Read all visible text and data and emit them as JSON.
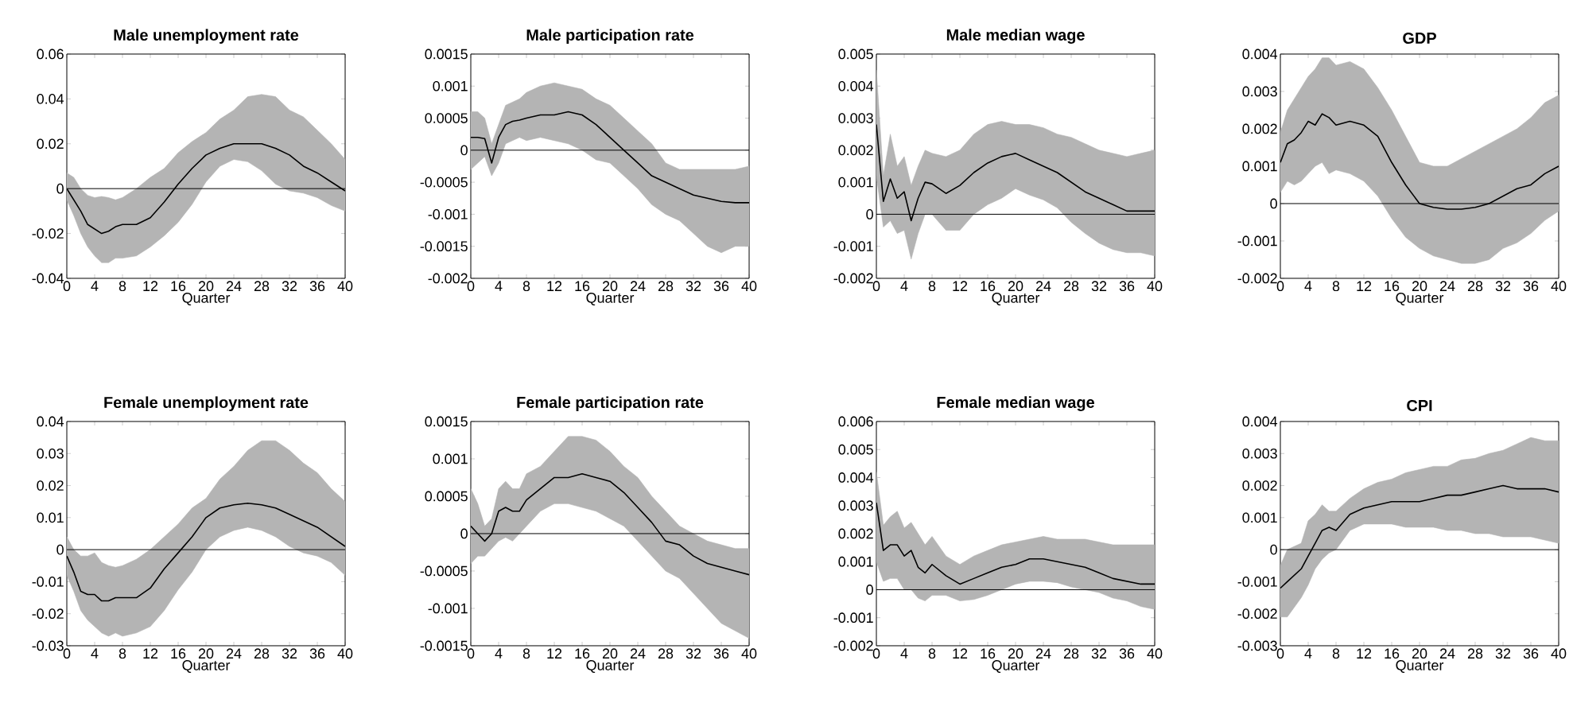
{
  "chart_data": [
    {
      "type": "line",
      "title": "Male unemployment rate",
      "xlabel": "Quarter",
      "x": [
        0,
        1,
        2,
        3,
        4,
        5,
        6,
        7,
        8,
        10,
        12,
        14,
        16,
        18,
        20,
        22,
        24,
        26,
        28,
        30,
        32,
        34,
        36,
        38,
        40
      ],
      "xlim": [
        0,
        40
      ],
      "xticks": [
        0,
        4,
        8,
        12,
        16,
        20,
        24,
        28,
        32,
        36,
        40
      ],
      "ylim": [
        -0.04,
        0.06
      ],
      "yticks": [
        -0.04,
        -0.02,
        0,
        0.02,
        0.04,
        0.06
      ],
      "ref_lines": [
        {
          "axis": "y",
          "value": 0,
          "color": "#000000"
        }
      ],
      "series": [
        {
          "color": "#000000",
          "values": [
            0,
            -0.005,
            -0.01,
            -0.016,
            -0.018,
            -0.02,
            -0.019,
            -0.017,
            -0.016,
            -0.016,
            -0.013,
            -0.006,
            0.002,
            0.009,
            0.015,
            0.018,
            0.02,
            0.02,
            0.02,
            0.018,
            0.015,
            0.01,
            0.007,
            0.003,
            -0.001
          ],
          "lower": [
            -0.005,
            -0.012,
            -0.02,
            -0.026,
            -0.03,
            -0.033,
            -0.033,
            -0.031,
            -0.031,
            -0.03,
            -0.026,
            -0.021,
            -0.015,
            -0.007,
            0.003,
            0.01,
            0.013,
            0.012,
            0.008,
            0.002,
            -0.001,
            -0.002,
            -0.004,
            -0.0075,
            -0.01
          ],
          "upper": [
            0.007,
            0.005,
            0.0,
            -0.003,
            -0.004,
            -0.0035,
            -0.004,
            -0.005,
            -0.004,
            0.0,
            0.005,
            0.009,
            0.016,
            0.021,
            0.025,
            0.031,
            0.035,
            0.041,
            0.042,
            0.041,
            0.035,
            0.032,
            0.026,
            0.02,
            0.013
          ]
        }
      ]
    },
    {
      "type": "line",
      "title": "Male participation rate",
      "xlabel": "Quarter",
      "x": [
        0,
        1,
        2,
        3,
        4,
        5,
        6,
        7,
        8,
        10,
        12,
        14,
        16,
        18,
        20,
        22,
        24,
        26,
        28,
        30,
        32,
        34,
        36,
        38,
        40
      ],
      "xlim": [
        0,
        40
      ],
      "xticks": [
        0,
        4,
        8,
        12,
        16,
        20,
        24,
        28,
        32,
        36,
        40
      ],
      "ylim": [
        -0.002,
        0.0015
      ],
      "yticks": [
        -0.002,
        -0.0015,
        -0.001,
        -0.0005,
        0,
        0.0005,
        0.001,
        0.0015
      ],
      "ref_lines": [
        {
          "axis": "y",
          "value": 0,
          "color": "#000000"
        }
      ],
      "series": [
        {
          "color": "#000000",
          "values": [
            0.0002,
            0.0002,
            0.00018,
            -0.0002,
            0.0002,
            0.0004,
            0.00045,
            0.00047,
            0.0005,
            0.00055,
            0.00055,
            0.0006,
            0.00055,
            0.0004,
            0.0002,
            0.0,
            -0.0002,
            -0.0004,
            -0.0005,
            -0.0006,
            -0.0007,
            -0.00075,
            -0.0008,
            -0.00082,
            -0.00082
          ],
          "lower": [
            -0.0003,
            -0.0002,
            -0.0001,
            -0.0004,
            -0.0002,
            0.0001,
            0.00015,
            0.0002,
            0.00015,
            0.0002,
            0.00015,
            0.0001,
            0.0,
            -0.00015,
            -0.0002,
            -0.0004,
            -0.0006,
            -0.00085,
            -0.001,
            -0.0011,
            -0.0013,
            -0.0015,
            -0.0016,
            -0.0015,
            -0.0015
          ],
          "upper": [
            0.0006,
            0.0006,
            0.0005,
            0.0001,
            0.0004,
            0.0007,
            0.00075,
            0.0008,
            0.0009,
            0.001,
            0.00105,
            0.001,
            0.00095,
            0.0008,
            0.0007,
            0.0005,
            0.0003,
            0.0001,
            -0.0002,
            -0.0003,
            -0.0003,
            -0.0003,
            -0.0003,
            -0.0003,
            -0.00025
          ]
        }
      ]
    },
    {
      "type": "line",
      "title": "Male median wage",
      "xlabel": "Quarter",
      "x": [
        0,
        1,
        2,
        3,
        4,
        5,
        6,
        7,
        8,
        10,
        12,
        14,
        16,
        18,
        20,
        22,
        24,
        26,
        28,
        30,
        32,
        34,
        36,
        38,
        40
      ],
      "xlim": [
        0,
        40
      ],
      "xticks": [
        0,
        4,
        8,
        12,
        16,
        20,
        24,
        28,
        32,
        36,
        40
      ],
      "ylim": [
        -0.002,
        0.005
      ],
      "yticks": [
        -0.002,
        -0.001,
        0,
        0.001,
        0.002,
        0.003,
        0.004,
        0.005
      ],
      "ref_lines": [
        {
          "axis": "y",
          "value": 0,
          "color": "#000000"
        }
      ],
      "series": [
        {
          "color": "#000000",
          "values": [
            0.0028,
            0.0004,
            0.0011,
            0.0005,
            0.0007,
            -0.0002,
            0.0005,
            0.001,
            0.00095,
            0.00065,
            0.0009,
            0.0013,
            0.0016,
            0.0018,
            0.0019,
            0.0017,
            0.0015,
            0.0013,
            0.001,
            0.0007,
            0.0005,
            0.0003,
            0.0001,
            0.0001,
            0.0001
          ],
          "lower": [
            0.0012,
            -0.0004,
            -0.0002,
            -0.0006,
            -0.0005,
            -0.0014,
            -0.0006,
            0.0,
            0.0,
            -0.0005,
            -0.0005,
            0.0,
            0.0003,
            0.0005,
            0.0008,
            0.0006,
            0.00045,
            0.0002,
            -0.00025,
            -0.0006,
            -0.0009,
            -0.0011,
            -0.0012,
            -0.0012,
            -0.0013
          ],
          "upper": [
            0.0045,
            0.0012,
            0.0025,
            0.0015,
            0.0018,
            0.0009,
            0.0015,
            0.002,
            0.0019,
            0.0018,
            0.002,
            0.0025,
            0.0028,
            0.0029,
            0.0028,
            0.0028,
            0.0027,
            0.0025,
            0.0024,
            0.0022,
            0.002,
            0.0019,
            0.0018,
            0.0019,
            0.002
          ]
        }
      ]
    },
    {
      "type": "line",
      "title": "GDP",
      "xlabel": "Quarter",
      "x": [
        0,
        1,
        2,
        3,
        4,
        5,
        6,
        7,
        8,
        10,
        12,
        14,
        16,
        18,
        20,
        22,
        24,
        26,
        28,
        30,
        32,
        34,
        36,
        38,
        40
      ],
      "xlim": [
        0,
        40
      ],
      "xticks": [
        0,
        4,
        8,
        12,
        16,
        20,
        24,
        28,
        32,
        36,
        40
      ],
      "ylim": [
        -0.002,
        0.004
      ],
      "yticks": [
        -0.002,
        -0.001,
        0,
        0.001,
        0.002,
        0.003,
        0.004
      ],
      "ref_lines": [
        {
          "axis": "y",
          "value": 0,
          "color": "#000000"
        }
      ],
      "series": [
        {
          "color": "#000000",
          "values": [
            0.0011,
            0.0016,
            0.0017,
            0.0019,
            0.0022,
            0.0021,
            0.0024,
            0.0023,
            0.0021,
            0.0022,
            0.0021,
            0.0018,
            0.0011,
            0.0005,
            0.0,
            -0.0001,
            -0.00015,
            -0.00015,
            -0.0001,
            0.0,
            0.0002,
            0.0004,
            0.0005,
            0.0008,
            0.001
          ],
          "lower": [
            0.0003,
            0.0006,
            0.0005,
            0.0006,
            0.0008,
            0.001,
            0.0011,
            0.0008,
            0.0009,
            0.0008,
            0.0006,
            0.0002,
            -0.0004,
            -0.0009,
            -0.0012,
            -0.0014,
            -0.0015,
            -0.0016,
            -0.0016,
            -0.0015,
            -0.0012,
            -0.00105,
            -0.0008,
            -0.00045,
            -0.0002
          ],
          "upper": [
            0.0019,
            0.0025,
            0.0028,
            0.0031,
            0.0034,
            0.0036,
            0.0039,
            0.0039,
            0.0037,
            0.0038,
            0.0036,
            0.0031,
            0.0025,
            0.0018,
            0.0011,
            0.001,
            0.001,
            0.0012,
            0.0014,
            0.0016,
            0.0018,
            0.002,
            0.0023,
            0.0027,
            0.0029
          ]
        }
      ]
    },
    {
      "type": "line",
      "title": "Female unemployment rate",
      "xlabel": "Quarter",
      "x": [
        0,
        1,
        2,
        3,
        4,
        5,
        6,
        7,
        8,
        10,
        12,
        14,
        16,
        18,
        20,
        22,
        24,
        26,
        28,
        30,
        32,
        34,
        36,
        38,
        40
      ],
      "xlim": [
        0,
        40
      ],
      "xticks": [
        0,
        4,
        8,
        12,
        16,
        20,
        24,
        28,
        32,
        36,
        40
      ],
      "ylim": [
        -0.03,
        0.04
      ],
      "yticks": [
        -0.03,
        -0.02,
        -0.01,
        0,
        0.01,
        0.02,
        0.03,
        0.04
      ],
      "ref_lines": [
        {
          "axis": "y",
          "value": 0,
          "color": "#000000"
        }
      ],
      "series": [
        {
          "color": "#000000",
          "values": [
            -0.002,
            -0.007,
            -0.013,
            -0.014,
            -0.014,
            -0.016,
            -0.016,
            -0.015,
            -0.015,
            -0.015,
            -0.012,
            -0.006,
            -0.001,
            0.004,
            0.01,
            0.013,
            0.014,
            0.0145,
            0.014,
            0.013,
            0.011,
            0.009,
            0.007,
            0.004,
            0.001
          ],
          "lower": [
            -0.008,
            -0.013,
            -0.019,
            -0.022,
            -0.024,
            -0.026,
            -0.027,
            -0.026,
            -0.027,
            -0.026,
            -0.024,
            -0.019,
            -0.0125,
            -0.007,
            0.0,
            0.004,
            0.006,
            0.007,
            0.006,
            0.004,
            0.001,
            -0.001,
            -0.002,
            -0.004,
            -0.008
          ],
          "upper": [
            0.004,
            0.0,
            -0.002,
            -0.002,
            -0.001,
            -0.004,
            -0.005,
            -0.0055,
            -0.005,
            -0.003,
            0.0,
            0.004,
            0.008,
            0.013,
            0.016,
            0.022,
            0.026,
            0.031,
            0.034,
            0.034,
            0.031,
            0.027,
            0.024,
            0.019,
            0.015
          ]
        }
      ]
    },
    {
      "type": "line",
      "title": "Female participation rate",
      "xlabel": "Quarter",
      "x": [
        0,
        1,
        2,
        3,
        4,
        5,
        6,
        7,
        8,
        10,
        12,
        14,
        16,
        18,
        20,
        22,
        24,
        26,
        28,
        30,
        32,
        34,
        36,
        38,
        40
      ],
      "xlim": [
        0,
        40
      ],
      "xticks": [
        0,
        4,
        8,
        12,
        16,
        20,
        24,
        28,
        32,
        36,
        40
      ],
      "ylim": [
        -0.0015,
        0.0015
      ],
      "yticks": [
        -0.0015,
        -0.001,
        -0.0005,
        0,
        0.0005,
        0.001,
        0.0015
      ],
      "ref_lines": [
        {
          "axis": "y",
          "value": 0,
          "color": "#000000"
        }
      ],
      "series": [
        {
          "color": "#000000",
          "values": [
            0.0001,
            0.0,
            -0.0001,
            0.0,
            0.0003,
            0.00035,
            0.0003,
            0.0003,
            0.00045,
            0.0006,
            0.00075,
            0.00075,
            0.0008,
            0.00075,
            0.0007,
            0.00055,
            0.00035,
            0.00015,
            -0.0001,
            -0.00015,
            -0.0003,
            -0.0004,
            -0.00045,
            -0.0005,
            -0.00055
          ],
          "lower": [
            -0.0004,
            -0.0003,
            -0.0003,
            -0.0002,
            -0.0001,
            -5e-05,
            -0.0001,
            0.0,
            0.0001,
            0.0003,
            0.0004,
            0.0004,
            0.00035,
            0.0003,
            0.0002,
            0.0001,
            -0.0001,
            -0.0003,
            -0.0005,
            -0.0006,
            -0.0008,
            -0.001,
            -0.0012,
            -0.0013,
            -0.0014
          ],
          "upper": [
            0.0006,
            0.0004,
            0.0001,
            0.0002,
            0.0006,
            0.0007,
            0.0006,
            0.0006,
            0.0008,
            0.0009,
            0.0011,
            0.0013,
            0.0013,
            0.00125,
            0.0011,
            0.0009,
            0.00075,
            0.0005,
            0.0003,
            0.0001,
            0.0,
            -0.0001,
            -0.00015,
            -0.0002,
            -0.0002
          ]
        }
      ]
    },
    {
      "type": "line",
      "title": "Female median wage",
      "xlabel": "Quarter",
      "x": [
        0,
        1,
        2,
        3,
        4,
        5,
        6,
        7,
        8,
        10,
        12,
        14,
        16,
        18,
        20,
        22,
        24,
        26,
        28,
        30,
        32,
        34,
        36,
        38,
        40
      ],
      "xlim": [
        0,
        40
      ],
      "xticks": [
        0,
        4,
        8,
        12,
        16,
        20,
        24,
        28,
        32,
        36,
        40
      ],
      "ylim": [
        -0.002,
        0.006
      ],
      "yticks": [
        -0.002,
        -0.001,
        0,
        0.001,
        0.002,
        0.003,
        0.004,
        0.005,
        0.006
      ],
      "ref_lines": [
        {
          "axis": "y",
          "value": 0,
          "color": "#000000"
        }
      ],
      "series": [
        {
          "color": "#000000",
          "values": [
            0.0031,
            0.0014,
            0.0016,
            0.0016,
            0.0012,
            0.0014,
            0.0008,
            0.0006,
            0.0009,
            0.0005,
            0.0002,
            0.0004,
            0.0006,
            0.0008,
            0.0009,
            0.0011,
            0.0011,
            0.001,
            0.0009,
            0.0008,
            0.0006,
            0.0004,
            0.0003,
            0.0002,
            0.0002
          ],
          "lower": [
            0.001,
            0.0003,
            0.0004,
            0.0004,
            0.0,
            0.0,
            -0.0003,
            -0.0004,
            -0.0002,
            -0.0002,
            -0.0004,
            -0.00035,
            -0.0002,
            0.0,
            0.0002,
            0.0003,
            0.0003,
            0.00025,
            0.0001,
            0.0,
            -0.0001,
            -0.0003,
            -0.0004,
            -0.0006,
            -0.0007
          ],
          "upper": [
            0.0042,
            0.0023,
            0.0026,
            0.0028,
            0.0022,
            0.0024,
            0.002,
            0.0016,
            0.0019,
            0.0012,
            0.0009,
            0.0012,
            0.0014,
            0.0016,
            0.0017,
            0.0018,
            0.0019,
            0.0018,
            0.0018,
            0.0018,
            0.0017,
            0.0016,
            0.0016,
            0.0016,
            0.0016
          ]
        }
      ]
    },
    {
      "type": "line",
      "title": "CPI",
      "xlabel": "Quarter",
      "x": [
        0,
        1,
        2,
        3,
        4,
        5,
        6,
        7,
        8,
        10,
        12,
        14,
        16,
        18,
        20,
        22,
        24,
        26,
        28,
        30,
        32,
        34,
        36,
        38,
        40
      ],
      "xlim": [
        0,
        40
      ],
      "xticks": [
        0,
        4,
        8,
        12,
        16,
        20,
        24,
        28,
        32,
        36,
        40
      ],
      "ylim": [
        -0.003,
        0.004
      ],
      "yticks": [
        -0.003,
        -0.002,
        -0.001,
        0,
        0.001,
        0.002,
        0.003,
        0.004
      ],
      "ref_lines": [
        {
          "axis": "y",
          "value": 0,
          "color": "#000000"
        }
      ],
      "series": [
        {
          "color": "#000000",
          "values": [
            -0.0012,
            -0.001,
            -0.0008,
            -0.0006,
            -0.0002,
            0.0002,
            0.0006,
            0.0007,
            0.0006,
            0.0011,
            0.0013,
            0.0014,
            0.0015,
            0.0015,
            0.0015,
            0.0016,
            0.0017,
            0.0017,
            0.0018,
            0.0019,
            0.002,
            0.0019,
            0.0019,
            0.0019,
            0.0018
          ],
          "lower": [
            -0.0021,
            -0.0021,
            -0.0018,
            -0.0015,
            -0.0011,
            -0.0006,
            -0.0003,
            -0.0001,
            0.0,
            0.0006,
            0.0008,
            0.0008,
            0.0008,
            0.0007,
            0.0007,
            0.0007,
            0.0006,
            0.0006,
            0.0005,
            0.0005,
            0.0004,
            0.0004,
            0.0004,
            0.0003,
            0.0002
          ],
          "upper": [
            -0.0005,
            0.0,
            0.0001,
            0.0002,
            0.0009,
            0.0011,
            0.0014,
            0.0012,
            0.0012,
            0.0016,
            0.0019,
            0.0021,
            0.0022,
            0.0024,
            0.0025,
            0.0026,
            0.0026,
            0.0028,
            0.00285,
            0.003,
            0.0031,
            0.0033,
            0.0035,
            0.0034,
            0.0034
          ]
        }
      ]
    }
  ]
}
